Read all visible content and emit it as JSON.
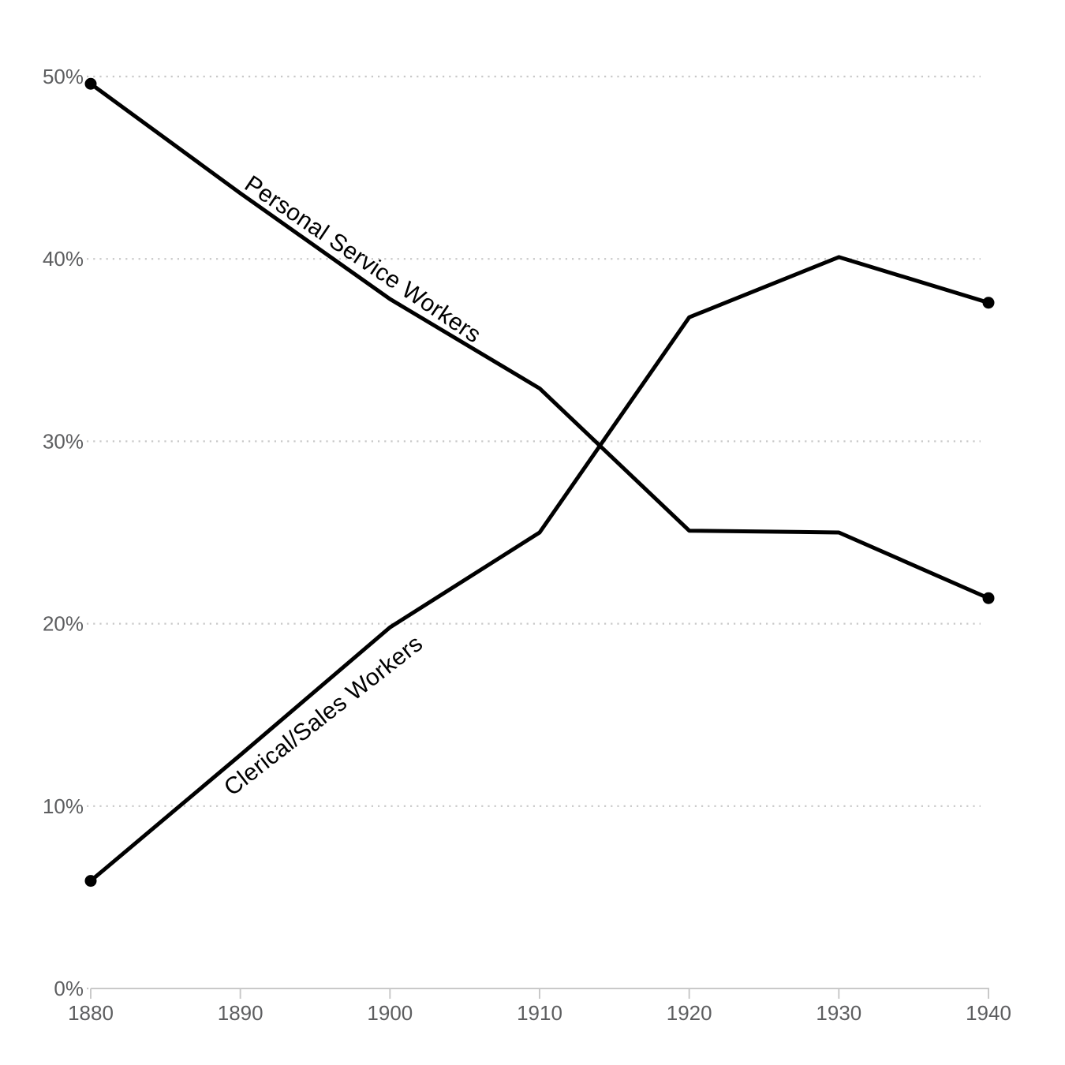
{
  "chart_data": {
    "type": "line",
    "title": "",
    "xlabel": "",
    "ylabel": "",
    "x": [
      1880,
      1890,
      1900,
      1910,
      1920,
      1930,
      1940
    ],
    "x_tick_labels": [
      "1880",
      "1890",
      "1900",
      "1910",
      "1920",
      "1930",
      "1940"
    ],
    "y_ticks": [
      0,
      10,
      20,
      30,
      40,
      50
    ],
    "y_tick_labels": [
      "0%",
      "10%",
      "20%",
      "30%",
      "40%",
      "50%"
    ],
    "xlim": [
      1880,
      1940
    ],
    "ylim": [
      0,
      54
    ],
    "grid": "horizontal dotted gridlines at each 10% step",
    "legend": "inline rotated labels along the lines",
    "endpoint_markers": true,
    "series": [
      {
        "name": "Personal Service Workers",
        "values": [
          49.6,
          43.6,
          37.8,
          32.9,
          25.1,
          25.0,
          21.4
        ]
      },
      {
        "name": "Clerical/Sales Workers",
        "values": [
          5.9,
          12.8,
          19.8,
          25.0,
          36.8,
          40.1,
          37.6
        ]
      }
    ],
    "colors": {
      "line": "#000000",
      "grid": "#c8c8c8",
      "axis": "#c9c9c9",
      "tick_label": "#5d5e60",
      "series_label": "#000000",
      "background": "#ffffff"
    }
  }
}
